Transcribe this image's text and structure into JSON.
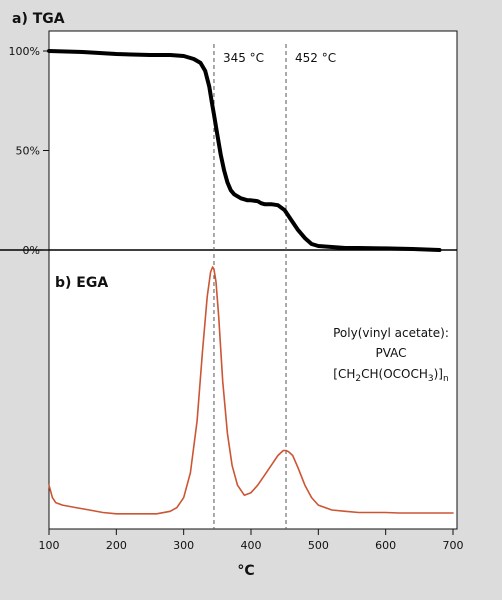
{
  "chart_data": [
    {
      "type": "line",
      "title": "a) TGA",
      "xlabel": "°C",
      "ylabel": "",
      "xlim": [
        100,
        700
      ],
      "ylim": [
        0,
        100
      ],
      "yticks": [
        {
          "value": 100,
          "label": "100%"
        },
        {
          "value": 50,
          "label": "50%"
        },
        {
          "value": 0,
          "label": "0%"
        }
      ],
      "annotations": [
        {
          "x": 345,
          "label": "345 °C"
        },
        {
          "x": 452,
          "label": "452 °C"
        }
      ],
      "series": [
        {
          "color": "#000000",
          "x": [
            100,
            150,
            200,
            250,
            280,
            300,
            315,
            325,
            332,
            338,
            342,
            345,
            350,
            355,
            360,
            365,
            370,
            375,
            380,
            385,
            390,
            395,
            400,
            410,
            415,
            420,
            430,
            440,
            450,
            460,
            470,
            480,
            490,
            500,
            520,
            540,
            560,
            600,
            640,
            680
          ],
          "y": [
            100,
            99.5,
            98.5,
            98,
            98,
            97.5,
            96,
            94,
            90,
            82,
            74,
            68,
            58,
            48,
            40,
            34,
            30,
            28,
            27,
            26,
            25.5,
            25,
            25,
            24.5,
            23.5,
            23,
            23,
            22.5,
            20,
            15,
            10,
            6,
            3,
            2,
            1.5,
            1,
            1,
            0.8,
            0.5,
            0
          ]
        }
      ]
    },
    {
      "type": "line",
      "title": "b) EGA",
      "xlabel": "°C",
      "ylabel": "",
      "xlim": [
        100,
        700
      ],
      "ylim": [
        0,
        100
      ],
      "xticks": [
        100,
        200,
        300,
        400,
        500,
        600,
        700
      ],
      "annotations": [
        {
          "x": 345,
          "label": "345 °C"
        },
        {
          "x": 452,
          "label": "452 °C"
        }
      ],
      "text_annotation": [
        "Poly(vinyl acetate):",
        "PVAC"
      ],
      "formula": {
        "pre": "[CH",
        "s1": "2",
        "mid1": "CH(OCOCH",
        "s2": "3",
        "mid2": ")]",
        "s3": "n"
      },
      "series": [
        {
          "color": "#cc5533",
          "x": [
            100,
            105,
            110,
            120,
            140,
            160,
            180,
            200,
            220,
            240,
            260,
            280,
            290,
            300,
            310,
            320,
            328,
            335,
            340,
            343,
            345,
            348,
            352,
            358,
            365,
            372,
            380,
            390,
            400,
            410,
            420,
            430,
            440,
            448,
            452,
            456,
            462,
            470,
            480,
            490,
            500,
            520,
            540,
            560,
            580,
            600,
            620,
            640,
            660,
            680,
            700
          ],
          "y": [
            12,
            7,
            5,
            4,
            3,
            2,
            1,
            0.5,
            0.5,
            0.5,
            0.5,
            1.5,
            3,
            7,
            17,
            38,
            66,
            88,
            98,
            100,
            99,
            94,
            80,
            54,
            33,
            20,
            12,
            8,
            9,
            12,
            16,
            20,
            24,
            26,
            26,
            25.5,
            24,
            19,
            12,
            7,
            4,
            2,
            1.5,
            1,
            1,
            1,
            0.8,
            0.8,
            0.8,
            0.8,
            0.8
          ]
        }
      ]
    }
  ]
}
